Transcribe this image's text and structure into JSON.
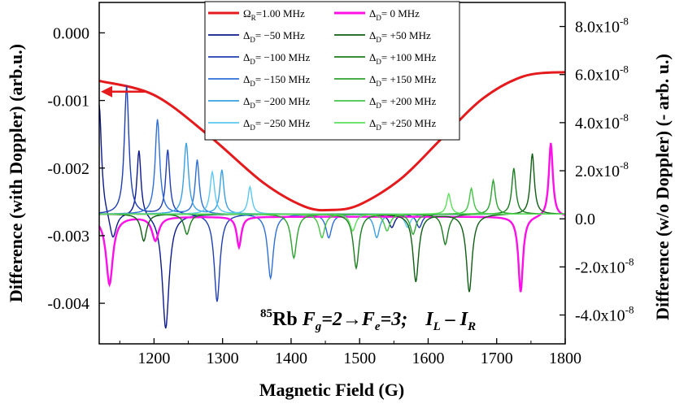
{
  "chart_data": {
    "type": "line",
    "xlabel": "Magnetic Field (G)",
    "ylabel_left": "Difference (with Doppler) (arb.u.)",
    "ylabel_right": "Difference (w/o Doppler) (- arb. u.)",
    "xlim": [
      1120,
      1800
    ],
    "ylim_left": [
      -0.0046,
      0.00045
    ],
    "ylim_right": [
      -5.2e-08,
      9e-08
    ],
    "x_ticks": [
      {
        "value": 1200,
        "label": "1200"
      },
      {
        "value": 1300,
        "label": "1300"
      },
      {
        "value": 1400,
        "label": "1400"
      },
      {
        "value": 1500,
        "label": "1500"
      },
      {
        "value": 1600,
        "label": "1600"
      },
      {
        "value": 1700,
        "label": "1700"
      },
      {
        "value": 1800,
        "label": "1800"
      }
    ],
    "y_left_ticks": [
      {
        "value": 0.0,
        "label": "0.000"
      },
      {
        "value": -0.001,
        "label": "-0.001"
      },
      {
        "value": -0.002,
        "label": "-0.002"
      },
      {
        "value": -0.003,
        "label": "-0.003"
      },
      {
        "value": -0.004,
        "label": "-0.004"
      }
    ],
    "y_right_ticks": [
      {
        "value": 8e-08,
        "mant": "8.0x10",
        "exp": "-8"
      },
      {
        "value": 6e-08,
        "mant": "6.0x10",
        "exp": "-8"
      },
      {
        "value": 4e-08,
        "mant": "4.0x10",
        "exp": "-8"
      },
      {
        "value": 2e-08,
        "mant": "2.0x10",
        "exp": "-8"
      },
      {
        "value": 0,
        "mant": "0.0",
        "exp": ""
      },
      {
        "value": -2e-08,
        "mant": "-2.0x10",
        "exp": "-8"
      },
      {
        "value": -4e-08,
        "mant": "-4.0x10",
        "exp": "-8"
      }
    ],
    "annotation": {
      "iso": "85",
      "element": "Rb",
      "transition": "F",
      "g": "g",
      "mid": "=2→F",
      "e": "e",
      "end": "=3;",
      "signal": "I",
      "L": "L",
      "minus": " – I",
      "R": "R"
    },
    "omega_r": {
      "label_sym": "Ω",
      "label_sub": "R",
      "label_rest": "=1.00 MHz",
      "color": "#e41a1c",
      "x": [
        1120,
        1200,
        1280,
        1360,
        1420,
        1460,
        1500,
        1560,
        1620,
        1680,
        1740,
        1800
      ],
      "y": [
        -0.00071,
        -0.00092,
        -0.00152,
        -0.00222,
        -0.00257,
        -0.00262,
        -0.00254,
        -0.00216,
        -0.00156,
        -0.00097,
        -0.00064,
        -0.00058
      ]
    },
    "series": [
      {
        "name": "−50 MHz",
        "sign": "−",
        "det": "50",
        "color": "#0d1a8c",
        "col": 0,
        "row": 1,
        "x0": 1120,
        "y0": -0.00268,
        "peaks": [
          [
            1120,
            0.00165,
            4
          ],
          [
            1178,
            0.00098,
            3.5
          ]
        ],
        "dips": [
          [
            1140,
            -0.0004,
            6
          ],
          [
            1217,
            -0.0017,
            6
          ],
          [
            1547,
            -0.0002,
            5
          ]
        ]
      },
      {
        "name": "−100 MHz",
        "sign": "−",
        "det": "100",
        "color": "#1f3fb3",
        "col": 0,
        "row": 2,
        "x0": 1120,
        "y0": -0.00268,
        "peaks": [
          [
            1160,
            0.0019,
            4
          ],
          [
            1220,
            0.00095,
            3.5
          ]
        ],
        "dips": [
          [
            1292,
            -0.0013,
            5
          ],
          [
            1587,
            -0.0002,
            5
          ]
        ]
      },
      {
        "name": "−150 MHz",
        "sign": "−",
        "det": "150",
        "color": "#2e6fd6",
        "col": 0,
        "row": 3,
        "x0": 1120,
        "y0": -0.00268,
        "peaks": [
          [
            1205,
            0.0014,
            4
          ],
          [
            1263,
            0.0008,
            3.5
          ]
        ],
        "dips": [
          [
            1370,
            -0.00095,
            5
          ],
          [
            1455,
            -0.00035,
            5
          ]
        ]
      },
      {
        "name": "−200 MHz",
        "sign": "−",
        "det": "200",
        "color": "#3aa0e0",
        "col": 0,
        "row": 4,
        "x0": 1120,
        "y0": -0.00268,
        "peaks": [
          [
            1247,
            0.00105,
            4
          ],
          [
            1299,
            0.00065,
            3.5
          ]
        ],
        "dips": [
          [
            1525,
            -0.00035,
            5
          ]
        ]
      },
      {
        "name": "−250 MHz",
        "sign": "−",
        "det": "250",
        "color": "#5cc8ef",
        "col": 0,
        "row": 5,
        "x0": 1120,
        "y0": -0.00268,
        "peaks": [
          [
            1285,
            0.00062,
            4
          ],
          [
            1340,
            0.0004,
            3.5
          ]
        ],
        "dips": [
          [
            1570,
            -0.0002,
            5
          ]
        ]
      },
      {
        "name": "0 MHz",
        "sign": "",
        "det": "0",
        "color": "#ff10e8",
        "col": 1,
        "row": 0,
        "x0": 1120,
        "y0": -0.00272,
        "peaks": [
          [
            1779,
            0.0011,
            3.5
          ]
        ],
        "dips": [
          [
            1135,
            -0.001,
            6
          ],
          [
            1202,
            -0.00035,
            6
          ],
          [
            1324,
            -0.00045,
            4
          ],
          [
            1735,
            -0.00112,
            4
          ]
        ]
      },
      {
        "name": "+50 MHz",
        "sign": "+",
        "det": "50",
        "color": "#0f5e14",
        "col": 1,
        "row": 1,
        "x0": 1120,
        "y0": -0.00268,
        "peaks": [
          [
            1752,
            0.0009,
            3.5
          ]
        ],
        "dips": [
          [
            1185,
            -0.0004,
            5
          ],
          [
            1582,
            -0.001,
            5
          ],
          [
            1660,
            -0.00115,
            5
          ]
        ]
      },
      {
        "name": "+100 MHz",
        "sign": "+",
        "det": "100",
        "color": "#1b7d1f",
        "col": 1,
        "row": 2,
        "x0": 1120,
        "y0": -0.00268,
        "peaks": [
          [
            1725,
            0.00068,
            3.5
          ]
        ],
        "dips": [
          [
            1248,
            -0.0003,
            5
          ],
          [
            1495,
            -0.0008,
            5
          ],
          [
            1625,
            -0.00045,
            5
          ]
        ]
      },
      {
        "name": "+150 MHz",
        "sign": "+",
        "det": "150",
        "color": "#2da331",
        "col": 1,
        "row": 3,
        "x0": 1120,
        "y0": -0.00268,
        "peaks": [
          [
            1695,
            0.0005,
            3.5
          ]
        ],
        "dips": [
          [
            1404,
            -0.00065,
            5
          ],
          [
            1578,
            -0.0003,
            5
          ]
        ]
      },
      {
        "name": "+200 MHz",
        "sign": "+",
        "det": "200",
        "color": "#46c447",
        "col": 1,
        "row": 4,
        "x0": 1120,
        "y0": -0.00268,
        "peaks": [
          [
            1663,
            0.00038,
            3.5
          ]
        ],
        "dips": [
          [
            1445,
            -0.00035,
            5
          ],
          [
            1540,
            -0.00025,
            5
          ]
        ]
      },
      {
        "name": "+250 MHz",
        "sign": "+",
        "det": "250",
        "color": "#5ce05c",
        "col": 1,
        "row": 5,
        "x0": 1120,
        "y0": -0.00268,
        "peaks": [
          [
            1630,
            0.0003,
            3.5
          ]
        ],
        "dips": [
          [
            1490,
            -0.00025,
            5
          ]
        ]
      }
    ],
    "legend_delta": "Δ",
    "legend_sub": "D",
    "legend_eq": "= ",
    "legend_position": "top-center",
    "arrow": {
      "direction": "left",
      "color": "#e41a1c",
      "y": -0.00087
    }
  }
}
